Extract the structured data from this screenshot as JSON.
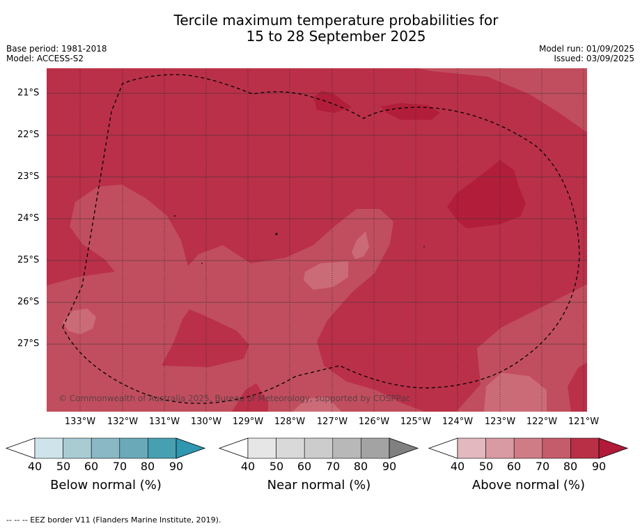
{
  "header": {
    "title_line1": "Tercile maximum temperature probabilities for",
    "title_line2": "15 to 28 September 2025",
    "base_period": "Base period: 1981-2018",
    "model": "Model: ACCESS-S2",
    "model_run": "Model run: 01/09/2025",
    "issued": "Issued: 03/09/2025"
  },
  "map": {
    "latitude_labels": [
      "21°S",
      "22°S",
      "23°S",
      "24°S",
      "25°S",
      "26°S",
      "27°S"
    ],
    "longitude_labels": [
      "133°W",
      "132°W",
      "131°W",
      "130°W",
      "129°W",
      "128°W",
      "127°W",
      "126°W",
      "125°W",
      "124°W",
      "123°W",
      "122°W",
      "121°W"
    ],
    "copyright": "© Commonwealth of Australia 2025, Bureau of Meteorology, supported by COSPPac",
    "colors": {
      "above_60": "#cc6b78",
      "above_70": "#c14e5e",
      "above_80": "#ba3049",
      "above_90": "#b21e3a"
    }
  },
  "legends": [
    {
      "title": "Below normal (%)",
      "ticks": [
        "40",
        "50",
        "60",
        "70",
        "80",
        "90"
      ],
      "colors": [
        "#cde4ea",
        "#a9ccd3",
        "#8ab9c5",
        "#6aa9b8",
        "#47a0b2",
        "#2f97b0"
      ]
    },
    {
      "title": "Near normal (%)",
      "ticks": [
        "40",
        "50",
        "60",
        "70",
        "80",
        "90"
      ],
      "colors": [
        "#e6e6e6",
        "#d9d9d9",
        "#cccccc",
        "#b8b8b8",
        "#a3a3a3",
        "#808080"
      ]
    },
    {
      "title": "Above normal (%)",
      "ticks": [
        "40",
        "50",
        "60",
        "70",
        "80",
        "90"
      ],
      "colors": [
        "#e3b8bf",
        "#da9aa3",
        "#cf7c86",
        "#c55c6b",
        "#b93046",
        "#b11a38"
      ]
    }
  ],
  "footnote": "--  --  -- EEZ border V11 (Flanders Marine Institute, 2019)."
}
